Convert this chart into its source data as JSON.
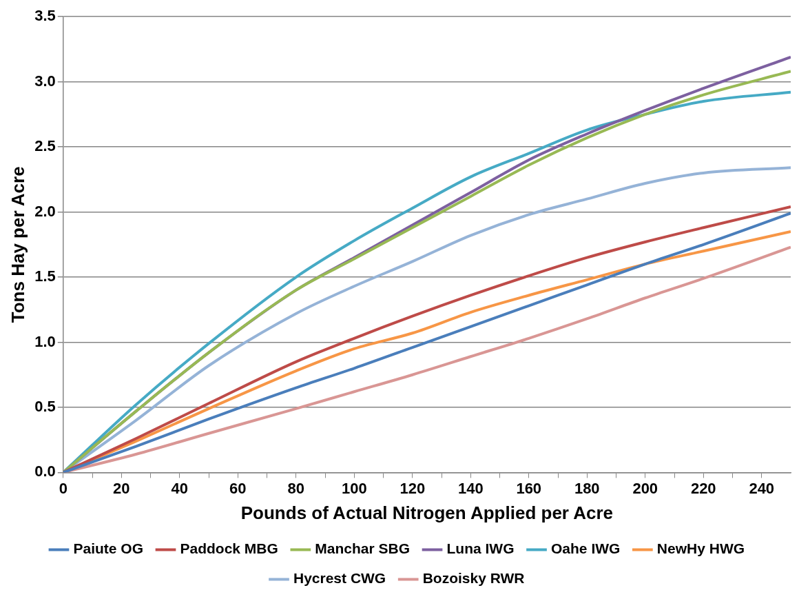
{
  "chart_data": {
    "type": "line",
    "xlabel": "Pounds of Actual Nitrogen Applied per Acre",
    "ylabel": "Tons Hay per Acre",
    "x": [
      0,
      25,
      50,
      80,
      100,
      120,
      140,
      160,
      180,
      200,
      220,
      250
    ],
    "xlim": [
      0,
      250
    ],
    "xticks": [
      0,
      {
        "value": 10,
        "label": null
      },
      20,
      {
        "value": 30,
        "label": null
      },
      40,
      {
        "value": 50,
        "label": null
      },
      60,
      {
        "value": 70,
        "label": null
      },
      80,
      {
        "value": 90,
        "label": null
      },
      100,
      {
        "value": 110,
        "label": null
      },
      120,
      {
        "value": 130,
        "label": null
      },
      140,
      {
        "value": 150,
        "label": null
      },
      160,
      {
        "value": 170,
        "label": null
      },
      180,
      {
        "value": 190,
        "label": null
      },
      200,
      {
        "value": 210,
        "label": null
      },
      220,
      {
        "value": 230,
        "label": null
      },
      240
    ],
    "ylim": [
      0,
      3.5
    ],
    "yticks": [
      {
        "value": 0,
        "label": "0.0"
      },
      0.5,
      {
        "value": 1,
        "label": "1.0"
      },
      1.5,
      {
        "value": 2,
        "label": "2.0"
      },
      2.5,
      {
        "value": 3,
        "label": "3.0"
      },
      3.5
    ],
    "grid": "y",
    "legend": "bottom",
    "marker": "none",
    "line_style": "solid",
    "series": [
      {
        "name": "Paiute OG",
        "color": "#4a7ebb",
        "values": [
          0,
          0.2,
          0.41,
          0.65,
          0.8,
          0.96,
          1.12,
          1.28,
          1.44,
          1.6,
          1.75,
          1.99
        ]
      },
      {
        "name": "Paddock MBG",
        "color": "#be4b48",
        "values": [
          0,
          0.26,
          0.53,
          0.85,
          1.03,
          1.2,
          1.36,
          1.51,
          1.65,
          1.77,
          1.88,
          2.04
        ]
      },
      {
        "name": "Manchar SBG",
        "color": "#98b954",
        "values": [
          0,
          0.47,
          0.92,
          1.4,
          1.64,
          1.88,
          2.12,
          2.36,
          2.57,
          2.75,
          2.9,
          3.08
        ]
      },
      {
        "name": "Luna IWG",
        "color": "#7d60a0",
        "values": [
          0,
          0.47,
          0.92,
          1.4,
          1.65,
          1.9,
          2.15,
          2.4,
          2.6,
          2.78,
          2.95,
          3.19
        ]
      },
      {
        "name": "Oahe IWG",
        "color": "#46aac5",
        "values": [
          0,
          0.52,
          0.99,
          1.5,
          1.78,
          2.03,
          2.27,
          2.45,
          2.63,
          2.75,
          2.85,
          2.92
        ]
      },
      {
        "name": "NewHy HWG",
        "color": "#f79646",
        "values": [
          0,
          0.24,
          0.49,
          0.78,
          0.95,
          1.07,
          1.23,
          1.36,
          1.48,
          1.6,
          1.7,
          1.85
        ]
      },
      {
        "name": "Hycrest CWG",
        "color": "#95b3d7",
        "values": [
          0,
          0.4,
          0.82,
          1.22,
          1.43,
          1.62,
          1.82,
          1.98,
          2.1,
          2.22,
          2.3,
          2.34
        ]
      },
      {
        "name": "Bozoisky RWR",
        "color": "#d99694",
        "values": [
          0,
          0.14,
          0.3,
          0.49,
          0.62,
          0.75,
          0.89,
          1.03,
          1.18,
          1.34,
          1.49,
          1.73
        ]
      }
    ]
  }
}
